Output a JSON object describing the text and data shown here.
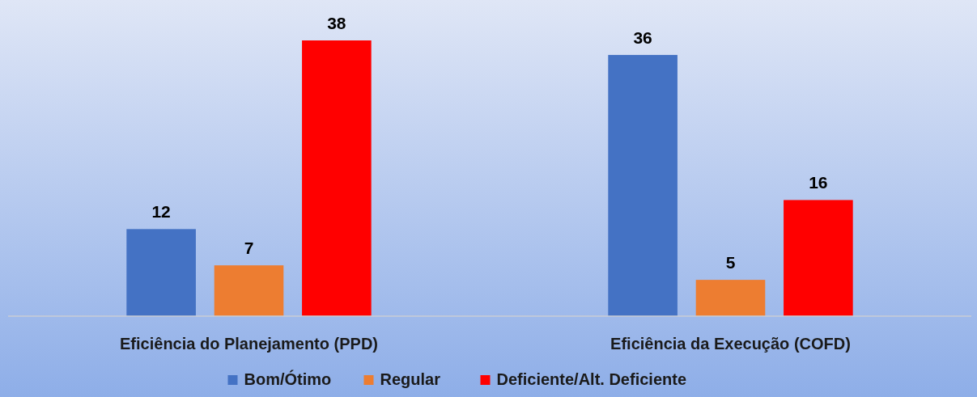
{
  "chart_data": {
    "type": "bar",
    "categories": [
      "Eficiência do Planejamento (PPD)",
      "Eficiência da Execução (COFD)"
    ],
    "series": [
      {
        "name": "Bom/Ótimo",
        "color": "#4472c4",
        "values": [
          12,
          36
        ]
      },
      {
        "name": "Regular",
        "color": "#ed7d31",
        "values": [
          7,
          5
        ]
      },
      {
        "name": "Deficiente/Alt. Deficiente",
        "color": "#ff0000",
        "values": [
          38,
          16
        ]
      }
    ],
    "tick_labels": "x",
    "data_labels": true,
    "legend": "bottom",
    "grid": false
  }
}
